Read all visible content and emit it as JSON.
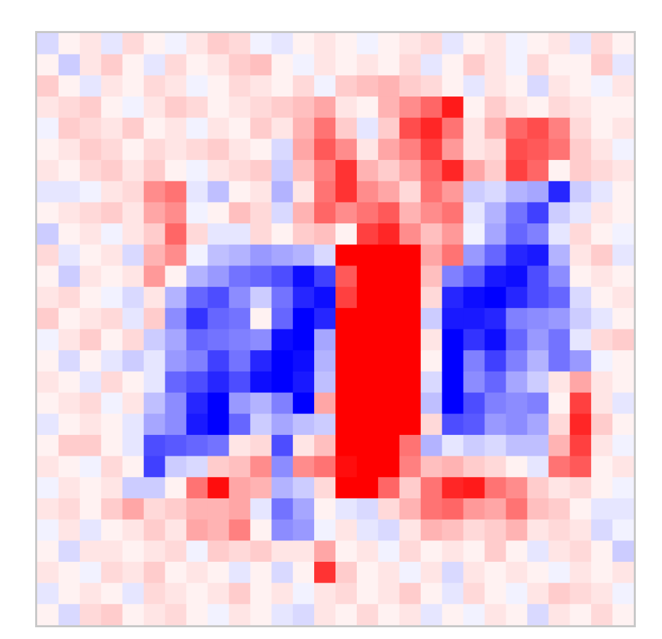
{
  "chart_data": {
    "type": "heatmap",
    "title": "",
    "xlabel": "",
    "ylabel": "",
    "colormap": "bwr",
    "color_low": "#0000ff",
    "color_mid": "#ffffff",
    "color_high": "#ff0000",
    "value_range": [
      -1,
      1
    ],
    "rows": 28,
    "cols": 28,
    "grid": false,
    "legend": "none",
    "axes_visible": false,
    "description_note_omitted": true,
    "values": [
      [
        -0.15,
        0.05,
        0.1,
        -0.1,
        0.15,
        0.05,
        -0.05,
        0.1,
        0.2,
        0.15,
        -0.05,
        -0.1,
        0.05,
        0.1,
        0.05,
        -0.05,
        0.05,
        0.1,
        0.15,
        -0.1,
        0.05,
        0.1,
        -0.05,
        0.05,
        0.1,
        -0.1,
        0.15,
        0.05
      ],
      [
        0.05,
        -0.2,
        0.1,
        0.2,
        0.05,
        -0.1,
        0.15,
        0.05,
        0.1,
        0.2,
        0.25,
        0.05,
        -0.05,
        0.1,
        0.05,
        0.1,
        0.05,
        0.15,
        -0.1,
        0.05,
        0.2,
        0.1,
        -0.05,
        0.15,
        0.05,
        0.05,
        0.2,
        -0.1
      ],
      [
        0.2,
        0.05,
        -0.1,
        0.1,
        0.05,
        0.15,
        0.1,
        -0.05,
        0.05,
        0.15,
        0.1,
        0.05,
        0.15,
        -0.05,
        0.2,
        0.25,
        0.3,
        0.2,
        0.15,
        0.05,
        -0.1,
        0.1,
        0.05,
        -0.15,
        0.1,
        0.05,
        -0.05,
        0.1
      ],
      [
        0.1,
        0.15,
        0.2,
        0.05,
        -0.05,
        0.1,
        0.2,
        0.15,
        0.05,
        0.1,
        0.15,
        0.2,
        0.25,
        0.35,
        0.1,
        0.05,
        0.3,
        0.45,
        0.6,
        0.9,
        0.05,
        0.2,
        0.1,
        0.05,
        0.15,
        0.1,
        0.05,
        0.05
      ],
      [
        -0.05,
        0.2,
        0.15,
        0.1,
        0.2,
        0.05,
        0.1,
        -0.05,
        0.1,
        0.05,
        0.2,
        0.1,
        0.3,
        0.55,
        0.2,
        -0.1,
        0.2,
        0.7,
        0.85,
        0.55,
        0.1,
        0.3,
        0.6,
        0.7,
        0.5,
        0.15,
        0.05,
        0.1
      ],
      [
        0.05,
        0.1,
        0.2,
        0.15,
        0.05,
        0.15,
        0.1,
        0.15,
        0.2,
        0.1,
        0.05,
        -0.15,
        0.35,
        0.65,
        0.45,
        0.1,
        0.35,
        0.5,
        0.75,
        0.4,
        0.1,
        0.15,
        0.7,
        0.65,
        0.55,
        0.2,
        0.1,
        -0.05
      ],
      [
        0.1,
        0.05,
        0.15,
        0.2,
        0.1,
        0.2,
        0.05,
        -0.05,
        0.1,
        0.15,
        0.2,
        -0.2,
        0.25,
        0.5,
        0.8,
        0.3,
        0.2,
        0.35,
        0.6,
        0.85,
        0.35,
        0.2,
        0.75,
        0.6,
        0.05,
        0.2,
        0.15,
        0.1
      ],
      [
        -0.1,
        -0.1,
        -0.05,
        0.1,
        0.15,
        0.45,
        0.55,
        -0.1,
        -0.25,
        0.05,
        0.1,
        -0.3,
        0.1,
        0.55,
        0.8,
        0.45,
        0.35,
        0.15,
        0.55,
        0.4,
        -0.2,
        -0.15,
        -0.3,
        -0.35,
        -0.85,
        -0.2,
        -0.1,
        0.05
      ],
      [
        0.05,
        0.1,
        0.15,
        0.2,
        0.1,
        0.35,
        0.45,
        -0.05,
        0.05,
        0.25,
        0.15,
        -0.15,
        0.3,
        0.6,
        0.45,
        0.55,
        0.65,
        0.3,
        0.45,
        0.55,
        -0.1,
        -0.3,
        -0.55,
        -0.75,
        -0.2,
        -0.1,
        0.1,
        0.05
      ],
      [
        -0.2,
        0.05,
        0.1,
        -0.05,
        0.1,
        0.2,
        0.6,
        0.15,
        -0.1,
        -0.1,
        0.15,
        0.05,
        0.2,
        0.25,
        0.05,
        0.75,
        0.85,
        0.45,
        0.25,
        0.4,
        -0.05,
        -0.35,
        -0.6,
        -0.5,
        -0.1,
        0.15,
        0.05,
        -0.05
      ],
      [
        0.15,
        -0.1,
        0.05,
        0.1,
        -0.15,
        0.3,
        0.45,
        -0.05,
        -0.25,
        -0.3,
        -0.4,
        -0.35,
        -0.3,
        -0.15,
        1,
        1,
        1,
        1,
        0.35,
        0.55,
        -0.4,
        -0.6,
        -0.85,
        -0.9,
        -0.3,
        0.1,
        0.2,
        -0.1
      ],
      [
        0.05,
        -0.2,
        0.1,
        0.05,
        0.1,
        0.4,
        0.05,
        -0.3,
        -0.4,
        -0.55,
        -0.6,
        -0.7,
        -0.95,
        -0.75,
        0.65,
        1,
        1,
        1,
        0.25,
        -0.5,
        -0.65,
        -0.9,
        -0.95,
        -0.7,
        -0.45,
        0.05,
        0.1,
        0.05
      ],
      [
        0.1,
        0.15,
        0.05,
        -0.05,
        -0.15,
        0.1,
        -0.3,
        -0.6,
        -0.7,
        -0.45,
        -0.2,
        -0.55,
        -0.85,
        -0.95,
        0.75,
        1,
        1,
        1,
        0.15,
        -0.85,
        -0.95,
        -1,
        -0.85,
        -0.7,
        -0.6,
        -0.15,
        0.05,
        0.1
      ],
      [
        0.2,
        0.05,
        0.1,
        0.15,
        -0.1,
        0.2,
        -0.45,
        -0.8,
        -0.6,
        -0.55,
        0.05,
        -0.6,
        -1,
        -0.85,
        1,
        1,
        1,
        1,
        -0.2,
        -0.9,
        -0.9,
        -0.85,
        -0.5,
        -0.45,
        -0.4,
        -0.2,
        -0.1,
        0.05
      ],
      [
        -0.05,
        0.1,
        0.2,
        0.05,
        0.15,
        -0.2,
        -0.35,
        -0.6,
        -0.55,
        -0.5,
        -0.45,
        -0.95,
        -1,
        -0.35,
        1,
        1,
        1,
        1,
        0.1,
        -1,
        -0.8,
        -0.95,
        -0.6,
        -0.4,
        -0.55,
        -0.1,
        0.15,
        0.2
      ],
      [
        0.05,
        -0.15,
        0.05,
        -0.1,
        -0.2,
        -0.1,
        -0.4,
        -0.5,
        -0.75,
        -0.55,
        -0.85,
        -1,
        -0.95,
        -0.3,
        1,
        1,
        1,
        1,
        0.05,
        -1,
        -0.5,
        -0.75,
        -0.5,
        -0.3,
        -0.55,
        -0.4,
        -0.05,
        0.05
      ],
      [
        0.1,
        0.05,
        -0.1,
        0.15,
        0.05,
        -0.1,
        -0.6,
        -0.7,
        -0.85,
        -0.7,
        -0.95,
        -1,
        -0.9,
        -0.25,
        1,
        1,
        1,
        1,
        -0.15,
        -1,
        -0.45,
        -0.6,
        -0.35,
        -0.2,
        0.1,
        0.35,
        0.1,
        0.05
      ],
      [
        0.05,
        0.1,
        0.15,
        -0.05,
        0.1,
        -0.25,
        -0.45,
        -0.85,
        -1,
        -0.4,
        -0.3,
        -0.5,
        -1,
        0.35,
        1,
        1,
        1,
        1,
        -0.25,
        -1,
        -0.7,
        -0.5,
        -0.45,
        -0.5,
        0.05,
        0.75,
        0.1,
        -0.1
      ],
      [
        -0.1,
        0.05,
        0.1,
        0.05,
        -0.1,
        -0.35,
        -0.45,
        -0.9,
        -1,
        -0.6,
        -0.2,
        -0.35,
        -0.25,
        -0.2,
        1,
        1,
        1,
        1,
        0.15,
        -0.7,
        -0.65,
        -0.4,
        -0.45,
        -0.35,
        0.15,
        0.85,
        0.2,
        0.05
      ],
      [
        0.05,
        0.2,
        0.2,
        0.05,
        -0.1,
        -0.7,
        -0.65,
        -0.6,
        -0.55,
        0.1,
        0.15,
        -0.7,
        0.1,
        0.25,
        1,
        1,
        1,
        0.55,
        -0.3,
        -0.1,
        -0.2,
        -0.15,
        -0.25,
        -0.25,
        0.3,
        0.75,
        0.1,
        -0.05
      ],
      [
        0.1,
        0.05,
        -0.05,
        0.15,
        0.05,
        -0.75,
        -0.2,
        -0.15,
        0.2,
        0.25,
        0.45,
        -0.45,
        0.45,
        0.55,
        0.95,
        1,
        1,
        0.5,
        0.25,
        0.3,
        0.2,
        0.15,
        0.05,
        -0.1,
        0.55,
        0.65,
        0.05,
        0.1
      ],
      [
        -0.05,
        0.1,
        0.05,
        0.1,
        -0.2,
        -0.2,
        0.05,
        0.55,
        0.95,
        0.35,
        0.3,
        -0.3,
        -0.2,
        0.15,
        1,
        1,
        0.6,
        0.2,
        0.55,
        0.85,
        0.9,
        0.55,
        0.45,
        0.2,
        0.1,
        0.15,
        0.05,
        -0.05
      ],
      [
        0.1,
        0.15,
        0.05,
        0.2,
        0.35,
        0.15,
        0.2,
        0.3,
        0.3,
        0.35,
        -0.1,
        -0.55,
        -0.35,
        0.05,
        -0.1,
        -0.15,
        0.15,
        0.3,
        0.55,
        0.6,
        0.4,
        0.35,
        0.55,
        0.25,
        0.2,
        0.05,
        -0.1,
        -0.1
      ],
      [
        -0.05,
        0.1,
        -0.1,
        0.05,
        0.1,
        0.2,
        0.1,
        0.35,
        0.3,
        0.5,
        0.05,
        -0.45,
        -0.4,
        -0.05,
        0.1,
        -0.1,
        -0.15,
        0.1,
        0.3,
        0.25,
        0.15,
        0.2,
        0.3,
        0.1,
        0.15,
        0.1,
        -0.15,
        -0.05
      ],
      [
        0.05,
        -0.15,
        0.1,
        0.1,
        0.05,
        0.1,
        0.15,
        -0.05,
        0.2,
        0.15,
        0.2,
        0.1,
        0.1,
        0.35,
        0.05,
        0.1,
        -0.05,
        0.15,
        0.05,
        0.1,
        0.05,
        0.2,
        0.05,
        -0.1,
        0.1,
        0.15,
        0.05,
        -0.2
      ],
      [
        0.1,
        0.05,
        -0.05,
        0.15,
        0.1,
        0.2,
        0.05,
        0.1,
        0.05,
        -0.1,
        0.05,
        -0.15,
        0.05,
        0.8,
        0.2,
        0.05,
        0.1,
        -0.05,
        0.1,
        -0.15,
        0.1,
        0.05,
        0.1,
        0.05,
        -0.05,
        0.1,
        0.05,
        0.1
      ],
      [
        -0.1,
        0.05,
        0.1,
        0.05,
        -0.1,
        0.15,
        0.1,
        0.05,
        0.1,
        0.2,
        0.05,
        0.1,
        -0.05,
        0.1,
        0.15,
        0.05,
        0.1,
        0.2,
        0.05,
        -0.1,
        0.15,
        0.05,
        -0.05,
        0.1,
        0.2,
        0.15,
        0.1,
        -0.05
      ],
      [
        0.05,
        -0.15,
        0.15,
        0.2,
        0.05,
        0.1,
        0.15,
        0.05,
        -0.05,
        0.1,
        0.05,
        -0.1,
        -0.15,
        0.1,
        0.05,
        0.15,
        0.05,
        0.1,
        -0.1,
        0.05,
        -0.05,
        0.1,
        0.05,
        -0.15,
        0.1,
        0.05,
        0.15,
        0.05
      ]
    ]
  }
}
